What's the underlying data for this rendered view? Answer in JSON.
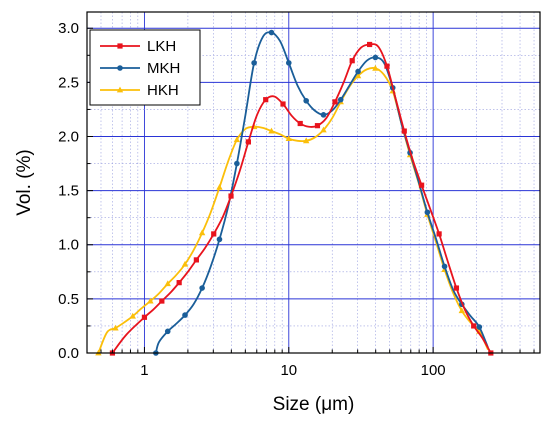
{
  "chart_data": {
    "type": "line",
    "title": "",
    "xlabel": "Size (μm)",
    "ylabel": "Vol. (%)",
    "xscale": "log",
    "xlim": [
      0.4,
      550
    ],
    "ylim": [
      0.0,
      3.15
    ],
    "x_ticks": [
      {
        "value": 1,
        "label": "1"
      },
      {
        "value": 10,
        "label": "10"
      },
      {
        "value": 100,
        "label": "100"
      }
    ],
    "y_ticks": [
      {
        "value": 0.0,
        "label": "0.0"
      },
      {
        "value": 0.5,
        "label": "0.5"
      },
      {
        "value": 1.0,
        "label": "1.0"
      },
      {
        "value": 1.5,
        "label": "1.5"
      },
      {
        "value": 2.0,
        "label": "2.0"
      },
      {
        "value": 2.5,
        "label": "2.5"
      },
      {
        "value": 3.0,
        "label": "3.0"
      }
    ],
    "grid": true,
    "legend": "top-left",
    "series": [
      {
        "name": "LKH",
        "color": "#e8131d",
        "marker": "square",
        "points": [
          [
            0.6,
            0.0
          ],
          [
            0.75,
            0.17
          ],
          [
            1.0,
            0.33
          ],
          [
            1.15,
            0.4
          ],
          [
            1.32,
            0.48
          ],
          [
            1.52,
            0.56
          ],
          [
            1.74,
            0.65
          ],
          [
            2.0,
            0.75
          ],
          [
            2.29,
            0.86
          ],
          [
            2.63,
            0.97
          ],
          [
            3.02,
            1.1
          ],
          [
            3.47,
            1.25
          ],
          [
            3.98,
            1.45
          ],
          [
            4.57,
            1.68
          ],
          [
            5.25,
            1.95
          ],
          [
            6.03,
            2.2
          ],
          [
            6.92,
            2.34
          ],
          [
            7.94,
            2.37
          ],
          [
            9.12,
            2.3
          ],
          [
            10.5,
            2.19
          ],
          [
            12.0,
            2.12
          ],
          [
            13.8,
            2.09
          ],
          [
            15.8,
            2.1
          ],
          [
            18.2,
            2.17
          ],
          [
            20.9,
            2.32
          ],
          [
            24.0,
            2.5
          ],
          [
            27.5,
            2.7
          ],
          [
            31.6,
            2.82
          ],
          [
            36.3,
            2.85
          ],
          [
            41.7,
            2.83
          ],
          [
            47.9,
            2.65
          ],
          [
            55.0,
            2.35
          ],
          [
            63.1,
            2.05
          ],
          [
            72.4,
            1.78
          ],
          [
            83.2,
            1.55
          ],
          [
            95.5,
            1.33
          ],
          [
            110,
            1.1
          ],
          [
            126,
            0.85
          ],
          [
            145,
            0.6
          ],
          [
            166,
            0.4
          ],
          [
            191,
            0.25
          ],
          [
            219,
            0.14
          ],
          [
            251,
            0.0
          ]
        ]
      },
      {
        "name": "MKH",
        "color": "#1a5e99",
        "marker": "circle",
        "points": [
          [
            1.2,
            0.0
          ],
          [
            1.26,
            0.1
          ],
          [
            1.45,
            0.2
          ],
          [
            1.66,
            0.27
          ],
          [
            1.91,
            0.35
          ],
          [
            2.19,
            0.45
          ],
          [
            2.51,
            0.6
          ],
          [
            2.88,
            0.8
          ],
          [
            3.31,
            1.05
          ],
          [
            3.8,
            1.35
          ],
          [
            4.37,
            1.75
          ],
          [
            5.01,
            2.2
          ],
          [
            5.75,
            2.68
          ],
          [
            6.61,
            2.92
          ],
          [
            7.59,
            2.96
          ],
          [
            8.71,
            2.88
          ],
          [
            10.0,
            2.68
          ],
          [
            11.5,
            2.47
          ],
          [
            13.2,
            2.33
          ],
          [
            15.1,
            2.24
          ],
          [
            17.4,
            2.2
          ],
          [
            20.0,
            2.24
          ],
          [
            22.9,
            2.34
          ],
          [
            26.3,
            2.47
          ],
          [
            30.2,
            2.6
          ],
          [
            34.7,
            2.7
          ],
          [
            39.8,
            2.73
          ],
          [
            45.7,
            2.68
          ],
          [
            52.5,
            2.45
          ],
          [
            60.3,
            2.12
          ],
          [
            69.2,
            1.85
          ],
          [
            79.4,
            1.58
          ],
          [
            91.2,
            1.3
          ],
          [
            105,
            1.05
          ],
          [
            120,
            0.8
          ],
          [
            138,
            0.58
          ],
          [
            158,
            0.45
          ],
          [
            182,
            0.34
          ],
          [
            209,
            0.24
          ],
          [
            240,
            0.05
          ]
        ]
      },
      {
        "name": "HKH",
        "color": "#fbbf0a",
        "marker": "triangle",
        "points": [
          [
            0.48,
            0.0
          ],
          [
            0.55,
            0.19
          ],
          [
            0.63,
            0.23
          ],
          [
            0.72,
            0.28
          ],
          [
            0.83,
            0.34
          ],
          [
            0.95,
            0.41
          ],
          [
            1.1,
            0.48
          ],
          [
            1.26,
            0.55
          ],
          [
            1.45,
            0.64
          ],
          [
            1.66,
            0.72
          ],
          [
            1.91,
            0.82
          ],
          [
            2.19,
            0.95
          ],
          [
            2.51,
            1.11
          ],
          [
            2.88,
            1.3
          ],
          [
            3.31,
            1.53
          ],
          [
            3.8,
            1.77
          ],
          [
            4.37,
            1.97
          ],
          [
            5.01,
            2.07
          ],
          [
            5.75,
            2.09
          ],
          [
            6.61,
            2.08
          ],
          [
            7.59,
            2.05
          ],
          [
            8.71,
            2.02
          ],
          [
            10.0,
            1.98
          ],
          [
            11.5,
            1.96
          ],
          [
            13.2,
            1.96
          ],
          [
            15.1,
            1.99
          ],
          [
            17.4,
            2.06
          ],
          [
            20.0,
            2.17
          ],
          [
            22.9,
            2.32
          ],
          [
            26.3,
            2.46
          ],
          [
            30.2,
            2.56
          ],
          [
            34.7,
            2.62
          ],
          [
            39.8,
            2.63
          ],
          [
            45.7,
            2.57
          ],
          [
            52.5,
            2.42
          ],
          [
            60.3,
            2.12
          ],
          [
            69.2,
            1.83
          ],
          [
            79.4,
            1.57
          ],
          [
            91.2,
            1.28
          ],
          [
            105,
            1.02
          ],
          [
            120,
            0.77
          ],
          [
            138,
            0.55
          ],
          [
            158,
            0.39
          ],
          [
            182,
            0.28
          ],
          [
            209,
            0.2
          ],
          [
            240,
            0.03
          ]
        ]
      }
    ]
  }
}
